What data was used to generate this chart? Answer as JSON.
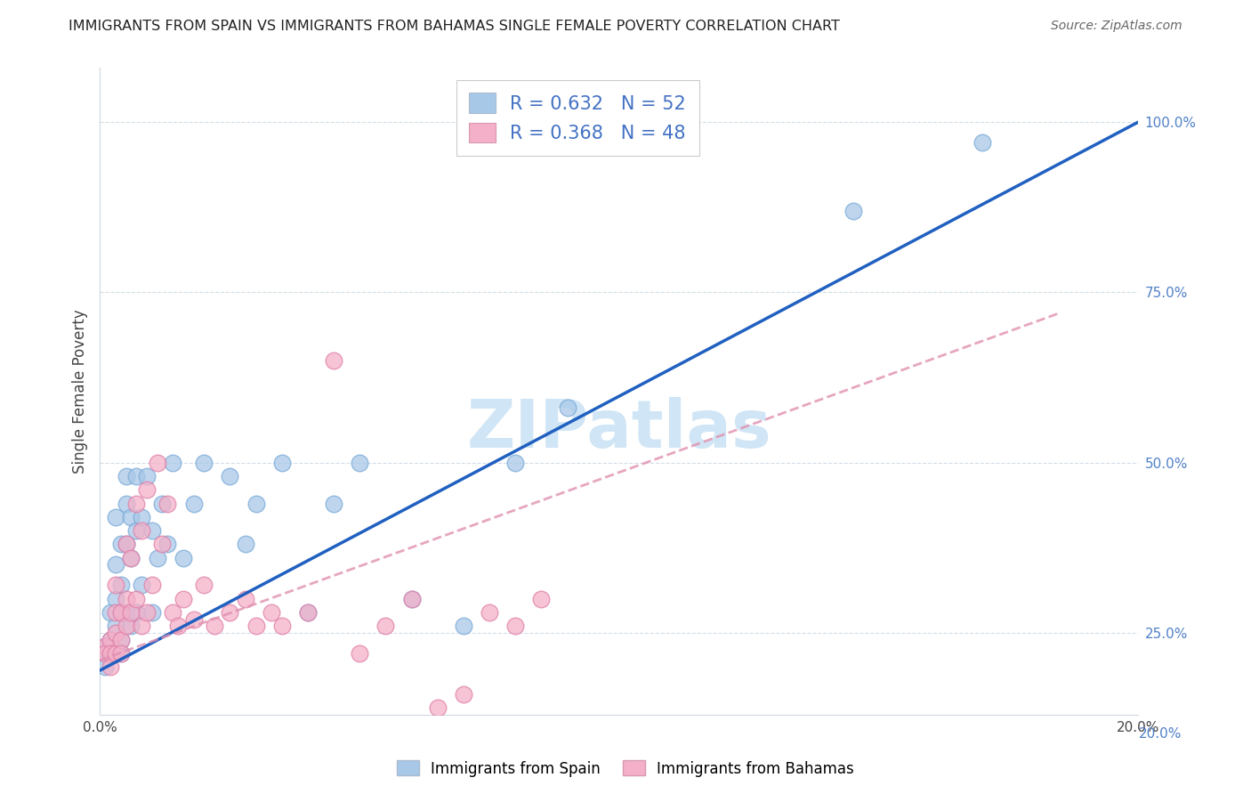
{
  "title": "IMMIGRANTS FROM SPAIN VS IMMIGRANTS FROM BAHAMAS SINGLE FEMALE POVERTY CORRELATION CHART",
  "source": "Source: ZipAtlas.com",
  "ylabel": "Single Female Poverty",
  "xlim": [
    0.0,
    0.2
  ],
  "ylim": [
    0.13,
    1.08
  ],
  "xticks": [
    0.0,
    0.04,
    0.08,
    0.12,
    0.16,
    0.2
  ],
  "xtick_labels": [
    "0.0%",
    "",
    "",
    "",
    "",
    "20.0%"
  ],
  "yticks": [
    0.25,
    0.5,
    0.75,
    1.0
  ],
  "ytick_labels": [
    "25.0%",
    "50.0%",
    "75.0%",
    "100.0%"
  ],
  "ymin_label": "20.0%",
  "spain_R": 0.632,
  "spain_N": 52,
  "bahamas_R": 0.368,
  "bahamas_N": 48,
  "spain_color": "#a8c8e8",
  "bahamas_color": "#f4b0c8",
  "spain_line_color": "#2060c0",
  "bahamas_line_color": "#e090b0",
  "watermark": "ZIPatlas",
  "watermark_color": "#d0e5f5",
  "background_color": "#ffffff",
  "spain_x": [
    0.001,
    0.001,
    0.001,
    0.002,
    0.002,
    0.002,
    0.002,
    0.003,
    0.003,
    0.003,
    0.003,
    0.003,
    0.004,
    0.004,
    0.004,
    0.004,
    0.004,
    0.005,
    0.005,
    0.005,
    0.005,
    0.006,
    0.006,
    0.006,
    0.007,
    0.007,
    0.007,
    0.008,
    0.008,
    0.009,
    0.01,
    0.01,
    0.011,
    0.012,
    0.013,
    0.014,
    0.016,
    0.018,
    0.02,
    0.025,
    0.028,
    0.03,
    0.035,
    0.04,
    0.045,
    0.05,
    0.06,
    0.07,
    0.08,
    0.09,
    0.145,
    0.17
  ],
  "spain_y": [
    0.23,
    0.22,
    0.2,
    0.22,
    0.24,
    0.28,
    0.22,
    0.22,
    0.26,
    0.3,
    0.35,
    0.42,
    0.24,
    0.28,
    0.32,
    0.38,
    0.22,
    0.28,
    0.38,
    0.44,
    0.48,
    0.26,
    0.36,
    0.42,
    0.28,
    0.4,
    0.48,
    0.32,
    0.42,
    0.48,
    0.28,
    0.4,
    0.36,
    0.44,
    0.38,
    0.5,
    0.36,
    0.44,
    0.5,
    0.48,
    0.38,
    0.44,
    0.5,
    0.28,
    0.44,
    0.5,
    0.3,
    0.26,
    0.5,
    0.58,
    0.87,
    0.97
  ],
  "bahamas_x": [
    0.001,
    0.001,
    0.002,
    0.002,
    0.002,
    0.003,
    0.003,
    0.003,
    0.003,
    0.004,
    0.004,
    0.004,
    0.005,
    0.005,
    0.005,
    0.006,
    0.006,
    0.007,
    0.007,
    0.008,
    0.008,
    0.009,
    0.009,
    0.01,
    0.011,
    0.012,
    0.013,
    0.014,
    0.015,
    0.016,
    0.018,
    0.02,
    0.022,
    0.025,
    0.028,
    0.03,
    0.033,
    0.035,
    0.04,
    0.045,
    0.05,
    0.055,
    0.06,
    0.065,
    0.07,
    0.075,
    0.08,
    0.085
  ],
  "bahamas_y": [
    0.23,
    0.22,
    0.24,
    0.22,
    0.2,
    0.25,
    0.22,
    0.28,
    0.32,
    0.24,
    0.28,
    0.22,
    0.3,
    0.26,
    0.38,
    0.28,
    0.36,
    0.3,
    0.44,
    0.26,
    0.4,
    0.28,
    0.46,
    0.32,
    0.5,
    0.38,
    0.44,
    0.28,
    0.26,
    0.3,
    0.27,
    0.32,
    0.26,
    0.28,
    0.3,
    0.26,
    0.28,
    0.26,
    0.28,
    0.65,
    0.22,
    0.26,
    0.3,
    0.14,
    0.16,
    0.28,
    0.26,
    0.3
  ]
}
